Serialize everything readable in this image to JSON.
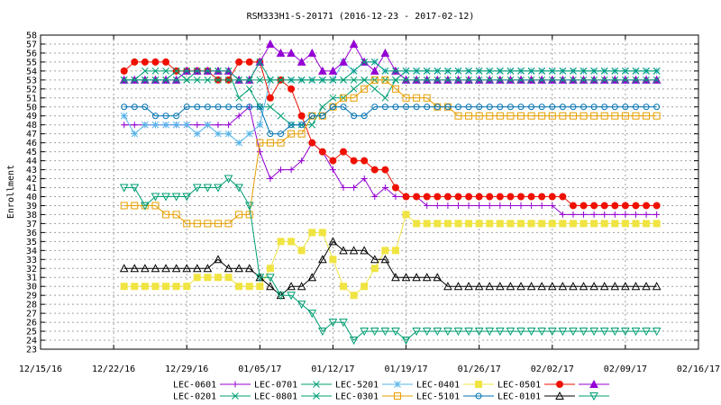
{
  "chart_data": {
    "type": "line",
    "title": "RSM333H1-S-20171 (2016-12-23 - 2017-02-12)",
    "ylabel": "Enrollment",
    "xlabel": "",
    "xlim": [
      "2016-12-15",
      "2017-02-16"
    ],
    "ylim": [
      23,
      58
    ],
    "grid": true,
    "legend": "bottom",
    "x_ticks": [
      {
        "date": "2016-12-15",
        "label": "12/15/16"
      },
      {
        "date": "2016-12-22",
        "label": "12/22/16"
      },
      {
        "date": "2016-12-29",
        "label": "12/29/16"
      },
      {
        "date": "2017-01-05",
        "label": "01/05/17"
      },
      {
        "date": "2017-01-12",
        "label": "01/12/17"
      },
      {
        "date": "2017-01-19",
        "label": "01/19/17"
      },
      {
        "date": "2017-01-26",
        "label": "01/26/17"
      },
      {
        "date": "2017-02-02",
        "label": "02/02/17"
      },
      {
        "date": "2017-02-09",
        "label": "02/09/17"
      },
      {
        "date": "2017-02-16",
        "label": "02/16/17"
      }
    ],
    "y_ticks": [
      "23",
      "24",
      "25",
      "26",
      "27",
      "28",
      "29",
      "30",
      "31",
      "32",
      "33",
      "34",
      "35",
      "36",
      "37",
      "38",
      "39",
      "40",
      "41",
      "42",
      "43",
      "44",
      "45",
      "46",
      "47",
      "48",
      "49",
      "50",
      "51",
      "52",
      "53",
      "54",
      "55",
      "56",
      "57",
      "58"
    ],
    "x_dates": [
      "2016-12-23",
      "2016-12-24",
      "2016-12-25",
      "2016-12-26",
      "2016-12-27",
      "2016-12-28",
      "2016-12-29",
      "2016-12-30",
      "2016-12-31",
      "2017-01-01",
      "2017-01-02",
      "2017-01-03",
      "2017-01-04",
      "2017-01-05",
      "2017-01-06",
      "2017-01-07",
      "2017-01-08",
      "2017-01-09",
      "2017-01-10",
      "2017-01-11",
      "2017-01-12",
      "2017-01-13",
      "2017-01-14",
      "2017-01-15",
      "2017-01-16",
      "2017-01-17",
      "2017-01-18",
      "2017-01-19",
      "2017-01-20",
      "2017-01-21",
      "2017-01-22",
      "2017-01-23",
      "2017-01-24",
      "2017-01-25",
      "2017-01-26",
      "2017-01-27",
      "2017-01-28",
      "2017-01-29",
      "2017-01-30",
      "2017-01-31",
      "2017-02-01",
      "2017-02-02",
      "2017-02-03",
      "2017-02-04",
      "2017-02-05",
      "2017-02-06",
      "2017-02-07",
      "2017-02-08",
      "2017-02-09",
      "2017-02-10",
      "2017-02-11",
      "2017-02-12"
    ],
    "series": [
      {
        "name": "LEC-0601",
        "color": "#9400d3",
        "marker": "plus",
        "values": [
          48,
          48,
          48,
          48,
          48,
          48,
          48,
          48,
          48,
          48,
          48,
          49,
          50,
          45,
          42,
          43,
          43,
          44,
          46,
          45,
          43,
          41,
          41,
          42,
          40,
          41,
          40,
          40,
          40,
          39,
          39,
          39,
          39,
          39,
          39,
          39,
          39,
          39,
          39,
          39,
          39,
          39,
          38,
          38,
          38,
          38,
          38,
          38,
          38,
          38,
          38,
          38
        ]
      },
      {
        "name": "LEC-0701",
        "color": "#009e73",
        "marker": "x",
        "values": [
          53,
          53,
          54,
          54,
          54,
          54,
          53,
          54,
          54,
          54,
          54,
          51,
          52,
          50,
          50,
          49,
          48,
          48,
          48,
          50,
          51,
          51,
          52,
          53,
          52,
          51,
          53,
          54,
          54,
          54,
          54,
          54,
          54,
          54,
          54,
          54,
          54,
          54,
          54,
          54,
          54,
          54,
          54,
          54,
          54,
          54,
          54,
          54,
          54,
          54,
          54,
          54
        ]
      },
      {
        "name": "LEC-5201",
        "color": "#56b4e9",
        "marker": "star",
        "values": [
          49,
          47,
          48,
          48,
          48,
          48,
          48,
          47,
          48,
          47,
          47,
          46,
          47,
          48,
          53,
          53,
          53,
          53,
          53,
          53,
          53,
          55,
          54,
          55,
          55,
          54,
          54,
          54,
          54,
          54,
          54,
          54,
          54,
          54,
          54,
          54,
          54,
          54,
          54,
          54,
          54,
          54,
          54,
          54,
          54,
          54,
          54,
          54,
          54,
          54,
          54,
          54
        ]
      },
      {
        "name": "LEC-0401",
        "color": "#f0e442",
        "marker": "square-filled",
        "values": [
          30,
          30,
          30,
          30,
          30,
          30,
          30,
          31,
          31,
          31,
          31,
          30,
          30,
          30,
          32,
          35,
          35,
          34,
          36,
          36,
          33,
          30,
          29,
          30,
          32,
          34,
          34,
          38,
          37,
          37,
          37,
          37,
          37,
          37,
          37,
          37,
          37,
          37,
          37,
          37,
          37,
          37,
          37,
          37,
          37,
          37,
          37,
          37,
          37,
          37,
          37,
          37
        ]
      },
      {
        "name": "LEC-0501",
        "color": "#ee1100",
        "marker": "circle-filled",
        "values": [
          54,
          55,
          55,
          55,
          55,
          54,
          54,
          54,
          54,
          53,
          53,
          55,
          55,
          55,
          51,
          53,
          52,
          49,
          46,
          45,
          44,
          45,
          44,
          44,
          43,
          43,
          41,
          40,
          40,
          40,
          40,
          40,
          40,
          40,
          40,
          40,
          40,
          40,
          40,
          40,
          40,
          40,
          40,
          39,
          39,
          39,
          39,
          39,
          39,
          39,
          39,
          39
        ]
      },
      {
        "name": "",
        "color": "#9400d3",
        "marker": "triangle-filled",
        "values": [
          53,
          53,
          53,
          53,
          53,
          53,
          54,
          54,
          54,
          54,
          54,
          53,
          53,
          55,
          57,
          56,
          56,
          55,
          56,
          54,
          54,
          55,
          57,
          55,
          54,
          56,
          54,
          53,
          53,
          53,
          53,
          53,
          53,
          53,
          53,
          53,
          53,
          53,
          53,
          53,
          53,
          53,
          53,
          53,
          53,
          53,
          53,
          53,
          53,
          53,
          53,
          53
        ]
      },
      {
        "name": "LEC-0201",
        "color": "#009e73",
        "marker": "x",
        "values": [
          53,
          53,
          53,
          53,
          53,
          54,
          54,
          54,
          54,
          54,
          54,
          53,
          53,
          55,
          53,
          53,
          53,
          53,
          53,
          53,
          53,
          53,
          54,
          55,
          55,
          54,
          54,
          54,
          54,
          54,
          54,
          54,
          54,
          54,
          54,
          54,
          54,
          54,
          54,
          54,
          54,
          54,
          54,
          54,
          54,
          54,
          54,
          54,
          54,
          54,
          54,
          54
        ]
      },
      {
        "name": "LEC-0801",
        "color": "#009e73",
        "marker": "x",
        "values": [
          53,
          53,
          53,
          53,
          53,
          53,
          53,
          53,
          53,
          53,
          53,
          53,
          53,
          53,
          53,
          53,
          53,
          53,
          53,
          53,
          53,
          53,
          53,
          53,
          53,
          53,
          53,
          53,
          53,
          53,
          53,
          53,
          53,
          53,
          53,
          53,
          53,
          53,
          53,
          53,
          53,
          53,
          53,
          53,
          53,
          53,
          53,
          53,
          53,
          53,
          53,
          53
        ]
      },
      {
        "name": "LEC-0301",
        "color": "#e69f00",
        "marker": "square-open",
        "values": [
          39,
          39,
          39,
          39,
          38,
          38,
          37,
          37,
          37,
          37,
          37,
          38,
          38,
          46,
          46,
          46,
          47,
          47,
          49,
          49,
          50,
          51,
          51,
          52,
          53,
          53,
          52,
          51,
          51,
          51,
          50,
          50,
          49,
          49,
          49,
          49,
          49,
          49,
          49,
          49,
          49,
          49,
          49,
          49,
          49,
          49,
          49,
          49,
          49,
          49,
          49,
          49
        ]
      },
      {
        "name": "LEC-5101",
        "color": "#0072b2",
        "marker": "circle-open",
        "values": [
          50,
          50,
          50,
          49,
          49,
          49,
          50,
          50,
          50,
          50,
          50,
          50,
          50,
          50,
          47,
          47,
          48,
          48,
          49,
          49,
          50,
          50,
          49,
          49,
          50,
          50,
          50,
          50,
          50,
          50,
          50,
          50,
          50,
          50,
          50,
          50,
          50,
          50,
          50,
          50,
          50,
          50,
          50,
          50,
          50,
          50,
          50,
          50,
          50,
          50,
          50,
          50
        ]
      },
      {
        "name": "LEC-0101",
        "color": "#000000",
        "marker": "triangle-open",
        "values": [
          32,
          32,
          32,
          32,
          32,
          32,
          32,
          32,
          32,
          33,
          32,
          32,
          32,
          31,
          30,
          29,
          30,
          30,
          31,
          33,
          35,
          34,
          34,
          34,
          33,
          33,
          31,
          31,
          31,
          31,
          31,
          30,
          30,
          30,
          30,
          30,
          30,
          30,
          30,
          30,
          30,
          30,
          30,
          30,
          30,
          30,
          30,
          30,
          30,
          30,
          30,
          30
        ]
      },
      {
        "name": "",
        "color": "#009e73",
        "marker": "triangle-down-open",
        "values": [
          41,
          41,
          39,
          40,
          40,
          40,
          40,
          41,
          41,
          41,
          42,
          41,
          39,
          31,
          31,
          29,
          29,
          28,
          27,
          25,
          26,
          26,
          24,
          25,
          25,
          25,
          25,
          24,
          25,
          25,
          25,
          25,
          25,
          25,
          25,
          25,
          25,
          25,
          25,
          25,
          25,
          25,
          25,
          25,
          25,
          25,
          25,
          25,
          25,
          25,
          25,
          25
        ]
      }
    ],
    "legend_rows": [
      [
        0,
        1,
        2,
        3,
        4,
        5
      ],
      [
        6,
        7,
        8,
        9,
        10,
        11
      ]
    ]
  }
}
